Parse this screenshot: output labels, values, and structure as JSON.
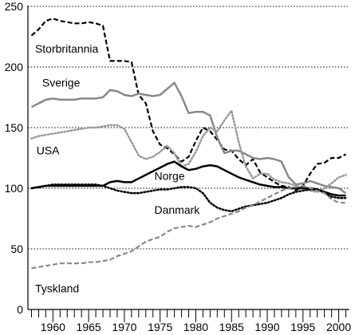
{
  "chart_data": {
    "type": "line",
    "xlim": [
      1956.5,
      2001.5
    ],
    "ylim": [
      0,
      250
    ],
    "grid": "horizontal dotted",
    "x_ticks": [
      1960,
      1965,
      1970,
      1975,
      1980,
      1985,
      1990,
      1995,
      2000
    ],
    "y_ticks": [
      0,
      50,
      100,
      150,
      200,
      250
    ],
    "x_tick_labels": [
      "1960",
      "1965",
      "1970",
      "1975",
      "1980",
      "1985",
      "1990",
      "1995",
      "2000"
    ],
    "y_tick_labels": [
      "0",
      "50",
      "100",
      "150",
      "200",
      "250"
    ],
    "series": [
      {
        "name": "Storbritannia",
        "color": "#000000",
        "style": "dashed",
        "width": 2.2,
        "label_at": [
          1957.5,
          212
        ],
        "points": [
          [
            1957,
            226
          ],
          [
            1958,
            231
          ],
          [
            1959,
            238
          ],
          [
            1960,
            240
          ],
          [
            1961,
            238
          ],
          [
            1962,
            237
          ],
          [
            1963,
            236
          ],
          [
            1964,
            236
          ],
          [
            1965,
            237
          ],
          [
            1966,
            236
          ],
          [
            1967,
            234
          ],
          [
            1968,
            205
          ],
          [
            1969,
            205
          ],
          [
            1970,
            205
          ],
          [
            1971,
            204
          ],
          [
            1972,
            177
          ],
          [
            1973,
            170
          ],
          [
            1974,
            147
          ],
          [
            1975,
            136
          ],
          [
            1976,
            133
          ],
          [
            1977,
            128
          ],
          [
            1978,
            122
          ],
          [
            1979,
            126
          ],
          [
            1980,
            139
          ],
          [
            1981,
            150
          ],
          [
            1982,
            147
          ],
          [
            1983,
            140
          ],
          [
            1984,
            132
          ],
          [
            1985,
            131
          ],
          [
            1986,
            124
          ],
          [
            1987,
            119
          ],
          [
            1988,
            124
          ],
          [
            1989,
            113
          ],
          [
            1990,
            109
          ],
          [
            1991,
            105
          ],
          [
            1992,
            102
          ],
          [
            1993,
            101
          ],
          [
            1994,
            98
          ],
          [
            1995,
            102
          ],
          [
            1996,
            112
          ],
          [
            1997,
            120
          ],
          [
            1998,
            121
          ],
          [
            1999,
            125
          ],
          [
            2000,
            125
          ],
          [
            2001,
            128
          ]
        ]
      },
      {
        "name": "Sverige",
        "color": "#888888",
        "style": "solid",
        "width": 2.5,
        "label_at": [
          1958.5,
          184
        ],
        "points": [
          [
            1957,
            167
          ],
          [
            1958,
            170
          ],
          [
            1959,
            173
          ],
          [
            1960,
            174
          ],
          [
            1961,
            173
          ],
          [
            1962,
            173
          ],
          [
            1963,
            173
          ],
          [
            1964,
            174
          ],
          [
            1965,
            174
          ],
          [
            1966,
            174
          ],
          [
            1967,
            175
          ],
          [
            1968,
            181
          ],
          [
            1969,
            180
          ],
          [
            1970,
            177
          ],
          [
            1971,
            176
          ],
          [
            1972,
            178
          ],
          [
            1973,
            177
          ],
          [
            1974,
            176
          ],
          [
            1975,
            177
          ],
          [
            1976,
            182
          ],
          [
            1977,
            187
          ],
          [
            1978,
            176
          ],
          [
            1979,
            162
          ],
          [
            1980,
            163
          ],
          [
            1981,
            163
          ],
          [
            1982,
            160
          ],
          [
            1983,
            142
          ],
          [
            1984,
            129
          ],
          [
            1985,
            131
          ],
          [
            1986,
            131
          ],
          [
            1987,
            128
          ],
          [
            1988,
            125
          ],
          [
            1989,
            124
          ],
          [
            1990,
            125
          ],
          [
            1991,
            124
          ],
          [
            1992,
            122
          ],
          [
            1993,
            109
          ],
          [
            1994,
            103
          ],
          [
            1995,
            104
          ],
          [
            1996,
            106
          ],
          [
            1997,
            104
          ],
          [
            1998,
            102
          ],
          [
            1999,
            101
          ],
          [
            2000,
            100
          ],
          [
            2001,
            96
          ]
        ]
      },
      {
        "name": "USA",
        "color": "#999999",
        "style": "dotted",
        "width": 2.5,
        "label_at": [
          1957.7,
          128
        ],
        "points": [
          [
            1957,
            141
          ],
          [
            1958,
            143
          ],
          [
            1959,
            144
          ],
          [
            1960,
            145
          ],
          [
            1961,
            146
          ],
          [
            1962,
            147
          ],
          [
            1963,
            148
          ],
          [
            1964,
            149
          ],
          [
            1965,
            150
          ],
          [
            1966,
            150
          ],
          [
            1967,
            151
          ],
          [
            1968,
            152
          ],
          [
            1969,
            152
          ],
          [
            1970,
            149
          ],
          [
            1971,
            138
          ],
          [
            1972,
            127
          ],
          [
            1973,
            124
          ],
          [
            1974,
            126
          ],
          [
            1975,
            130
          ],
          [
            1976,
            135
          ],
          [
            1977,
            129
          ],
          [
            1978,
            118
          ],
          [
            1979,
            120
          ],
          [
            1980,
            130
          ],
          [
            1981,
            143
          ],
          [
            1982,
            150
          ],
          [
            1983,
            147
          ],
          [
            1984,
            156
          ],
          [
            1985,
            164
          ],
          [
            1986,
            138
          ],
          [
            1987,
            118
          ],
          [
            1988,
            108
          ],
          [
            1989,
            112
          ],
          [
            1990,
            112
          ],
          [
            1991,
            107
          ],
          [
            1992,
            105
          ],
          [
            1993,
            104
          ],
          [
            1994,
            102
          ],
          [
            1995,
            100
          ],
          [
            1996,
            98
          ],
          [
            1997,
            97
          ],
          [
            1998,
            100
          ],
          [
            1999,
            104
          ],
          [
            2000,
            109
          ],
          [
            2001,
            111
          ]
        ]
      },
      {
        "name": "Norge",
        "color": "#000000",
        "style": "solid",
        "width": 2.5,
        "label_at": [
          1974.2,
          107
        ],
        "points": [
          [
            1957,
            100
          ],
          [
            1958,
            101
          ],
          [
            1959,
            102
          ],
          [
            1960,
            102
          ],
          [
            1961,
            102
          ],
          [
            1962,
            102
          ],
          [
            1963,
            102
          ],
          [
            1964,
            102
          ],
          [
            1965,
            102
          ],
          [
            1966,
            102
          ],
          [
            1967,
            102
          ],
          [
            1968,
            105
          ],
          [
            1969,
            106
          ],
          [
            1970,
            105
          ],
          [
            1971,
            105
          ],
          [
            1972,
            108
          ],
          [
            1973,
            111
          ],
          [
            1974,
            114
          ],
          [
            1975,
            117
          ],
          [
            1976,
            120
          ],
          [
            1977,
            122
          ],
          [
            1978,
            118
          ],
          [
            1979,
            115
          ],
          [
            1980,
            116
          ],
          [
            1981,
            118
          ],
          [
            1982,
            119
          ],
          [
            1983,
            118
          ],
          [
            1984,
            115
          ],
          [
            1985,
            112
          ],
          [
            1986,
            109
          ],
          [
            1987,
            107
          ],
          [
            1988,
            105
          ],
          [
            1989,
            103
          ],
          [
            1990,
            102
          ],
          [
            1991,
            101
          ],
          [
            1992,
            101
          ],
          [
            1993,
            100
          ],
          [
            1994,
            100
          ],
          [
            1995,
            100
          ],
          [
            1996,
            100
          ],
          [
            1997,
            99
          ],
          [
            1998,
            97
          ],
          [
            1999,
            95
          ],
          [
            2000,
            94
          ],
          [
            2001,
            94
          ]
        ]
      },
      {
        "name": "Danmark",
        "color": "#000000",
        "style": "dotted",
        "width": 2.5,
        "label_at": [
          1974.2,
          79
        ],
        "points": [
          [
            1957,
            100
          ],
          [
            1958,
            101
          ],
          [
            1959,
            102
          ],
          [
            1960,
            103
          ],
          [
            1961,
            103
          ],
          [
            1962,
            103
          ],
          [
            1963,
            103
          ],
          [
            1964,
            103
          ],
          [
            1965,
            103
          ],
          [
            1966,
            103
          ],
          [
            1967,
            102
          ],
          [
            1968,
            100
          ],
          [
            1969,
            98
          ],
          [
            1970,
            97
          ],
          [
            1971,
            96
          ],
          [
            1972,
            96
          ],
          [
            1973,
            97
          ],
          [
            1974,
            98
          ],
          [
            1975,
            99
          ],
          [
            1976,
            99
          ],
          [
            1977,
            100
          ],
          [
            1978,
            101
          ],
          [
            1979,
            101
          ],
          [
            1980,
            100
          ],
          [
            1981,
            96
          ],
          [
            1982,
            88
          ],
          [
            1983,
            84
          ],
          [
            1984,
            82
          ],
          [
            1985,
            81
          ],
          [
            1986,
            83
          ],
          [
            1987,
            85
          ],
          [
            1988,
            86
          ],
          [
            1989,
            87
          ],
          [
            1990,
            88
          ],
          [
            1991,
            90
          ],
          [
            1992,
            92
          ],
          [
            1993,
            95
          ],
          [
            1994,
            97
          ],
          [
            1995,
            98
          ],
          [
            1996,
            99
          ],
          [
            1997,
            99
          ],
          [
            1998,
            96
          ],
          [
            1999,
            93
          ],
          [
            2000,
            92
          ],
          [
            2001,
            92
          ]
        ]
      },
      {
        "name": "Tyskland",
        "color": "#888888",
        "style": "dashed",
        "width": 2.2,
        "label_at": [
          1957.5,
          14
        ],
        "points": [
          [
            1957,
            34
          ],
          [
            1958,
            35
          ],
          [
            1959,
            36
          ],
          [
            1960,
            37
          ],
          [
            1961,
            38
          ],
          [
            1962,
            38
          ],
          [
            1963,
            38
          ],
          [
            1964,
            38
          ],
          [
            1965,
            39
          ],
          [
            1966,
            39
          ],
          [
            1967,
            40
          ],
          [
            1968,
            41
          ],
          [
            1969,
            44
          ],
          [
            1970,
            46
          ],
          [
            1971,
            48
          ],
          [
            1972,
            52
          ],
          [
            1973,
            56
          ],
          [
            1974,
            58
          ],
          [
            1975,
            60
          ],
          [
            1976,
            64
          ],
          [
            1977,
            67
          ],
          [
            1978,
            68
          ],
          [
            1979,
            69
          ],
          [
            1980,
            68
          ],
          [
            1981,
            70
          ],
          [
            1982,
            72
          ],
          [
            1983,
            75
          ],
          [
            1984,
            77
          ],
          [
            1985,
            79
          ],
          [
            1986,
            81
          ],
          [
            1987,
            84
          ],
          [
            1988,
            86
          ],
          [
            1989,
            89
          ],
          [
            1990,
            92
          ],
          [
            1991,
            95
          ],
          [
            1992,
            98
          ],
          [
            1993,
            100
          ],
          [
            1994,
            101
          ],
          [
            1995,
            102
          ],
          [
            1996,
            100
          ],
          [
            1997,
            98
          ],
          [
            1998,
            96
          ],
          [
            1999,
            91
          ],
          [
            2000,
            88
          ],
          [
            2001,
            88
          ]
        ]
      }
    ]
  }
}
